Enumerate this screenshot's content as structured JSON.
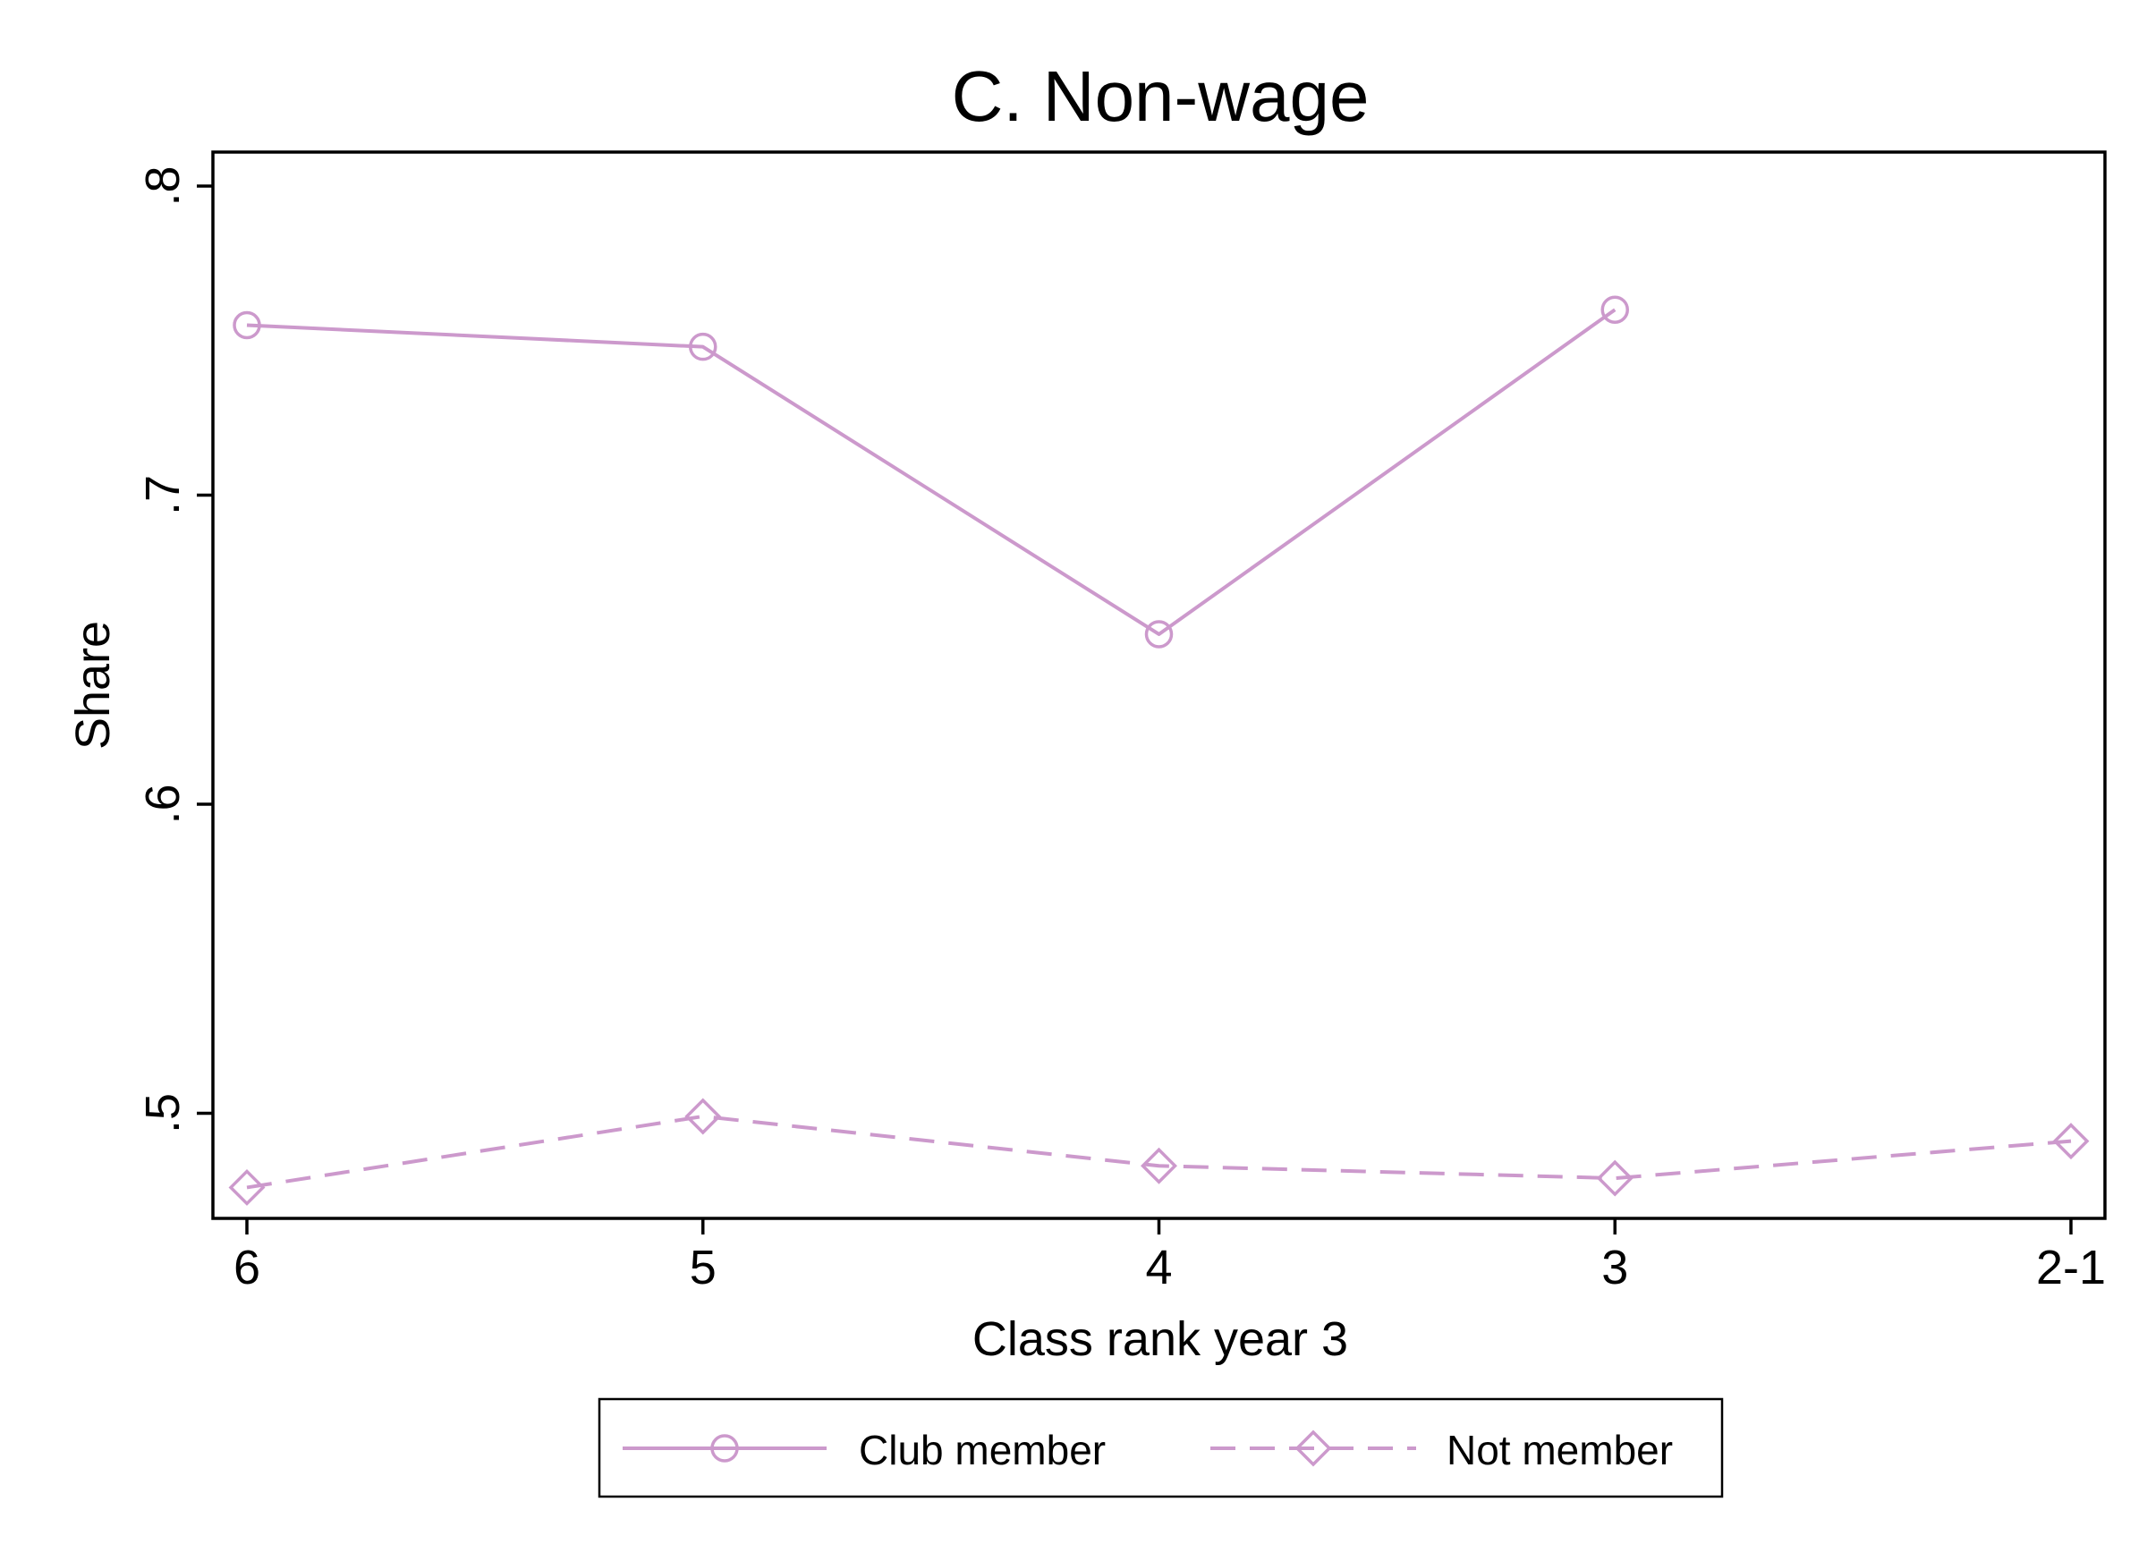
{
  "chart_data": {
    "type": "line",
    "title": "C. Non-wage",
    "xlabel": "Class rank year 3",
    "ylabel": "Share",
    "categories": [
      "6",
      "5",
      "4",
      "3",
      "2-1"
    ],
    "yticks": [
      {
        "value": 0.5,
        "label": ".5"
      },
      {
        "value": 0.6,
        "label": ".6"
      },
      {
        "value": 0.7,
        "label": ".7"
      },
      {
        "value": 0.8,
        "label": ".8"
      }
    ],
    "ylim": [
      0.466,
      0.811
    ],
    "grid": false,
    "legend_position": "bottom",
    "series": [
      {
        "name": "Club member",
        "marker": "circle",
        "linestyle": "solid",
        "color": "#cc99cc",
        "values": [
          0.755,
          0.748,
          0.655,
          0.76,
          null
        ]
      },
      {
        "name": "Not member",
        "marker": "diamond",
        "linestyle": "dashed",
        "color": "#cc99cc",
        "values": [
          0.476,
          0.499,
          0.483,
          0.479,
          0.491
        ]
      }
    ]
  }
}
